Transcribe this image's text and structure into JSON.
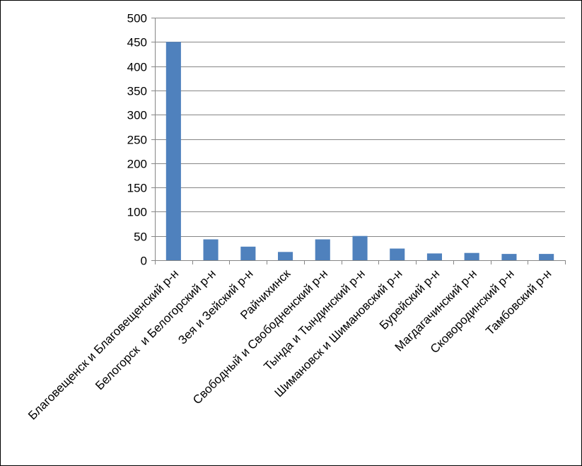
{
  "chart_data": {
    "type": "bar",
    "title": "",
    "xlabel": "",
    "ylabel": "",
    "ylim": [
      0,
      500
    ],
    "yticks": [
      0,
      50,
      100,
      150,
      200,
      250,
      300,
      350,
      400,
      450,
      500
    ],
    "grid": true,
    "legend": "none",
    "bar_color": "#4F81BD",
    "categories": [
      "Благовещенск и Благовещенский р-н",
      "Белогорск  и Белогорский р-н",
      "Зея и Зейский р-н",
      "Райчихинск",
      "Свободный и Свободненский р-н",
      "Тында и Тындинский р-н",
      "Шимановск и Шимановский р-н",
      "Бурейский р-н",
      "Магдагачинский р-н",
      "Сковородинский р-н",
      "Тамбовский р-н"
    ],
    "values": [
      450,
      43,
      28,
      17,
      43,
      50,
      24,
      14,
      15,
      13,
      13
    ]
  }
}
